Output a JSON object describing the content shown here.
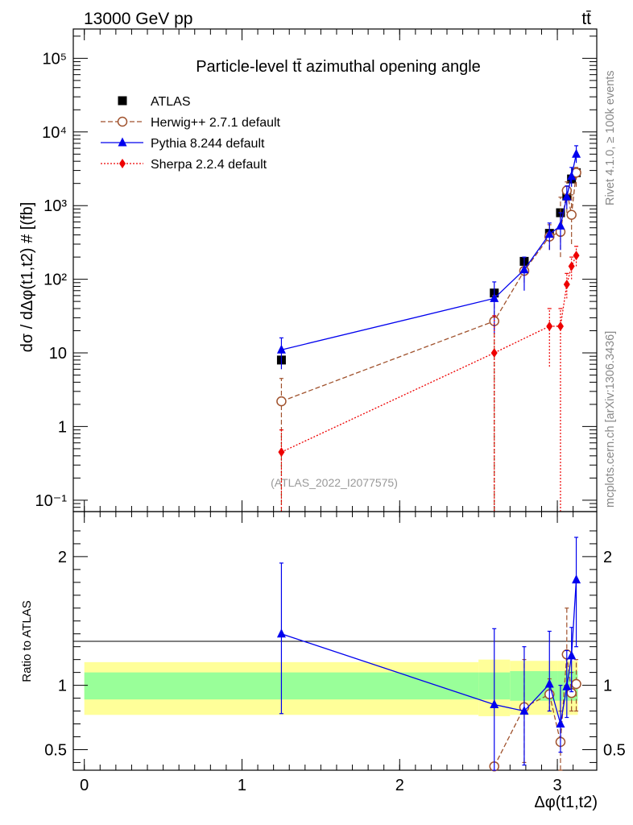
{
  "header": {
    "energy_label": "13000 GeV pp",
    "process_label": "tt̄"
  },
  "side_labels": {
    "rivet": "Rivet 4.1.0, ≥ 100k events",
    "mcplots": "mcplots.cern.ch [arXiv:1306.3436]"
  },
  "analysis_id": "(ATLAS_2022_I2077575)",
  "colors": {
    "atlas": "#000000",
    "herwig": "#a0522d",
    "pythia": "#0000ee",
    "sherpa": "#ee0000",
    "band_inner": "#99ff99",
    "band_outer": "#ffff99"
  },
  "chart_data": [
    {
      "type": "line",
      "panel": "main",
      "title": "Particle-level tt̄ azimuthal opening angle",
      "ylabel": "dσ / dΔφ(t1,t2) # [(fb]",
      "yscale": "log",
      "ylim": [
        0.07,
        250000
      ],
      "xlim": [
        -0.07,
        3.25
      ],
      "y_ticks": [
        {
          "v": 0.1,
          "label": "10⁻¹"
        },
        {
          "v": 1,
          "label": "1"
        },
        {
          "v": 10,
          "label": "10"
        },
        {
          "v": 100,
          "label": "10²"
        },
        {
          "v": 1000,
          "label": "10³"
        },
        {
          "v": 10000,
          "label": "10⁴"
        },
        {
          "v": 100000,
          "label": "10⁵"
        }
      ],
      "legend_position": "top-left",
      "series": [
        {
          "name": "ATLAS",
          "key": "atlas",
          "marker": "square",
          "line": "none",
          "x": [
            1.25,
            2.6,
            2.79,
            2.95,
            3.02,
            3.06,
            3.09,
            3.12
          ],
          "y": [
            8,
            65,
            175,
            420,
            800,
            1350,
            2300,
            2800
          ]
        },
        {
          "name": "Herwig++ 2.7.1 default",
          "key": "herwig",
          "marker": "circle",
          "line": "dashed",
          "x": [
            1.25,
            2.6,
            2.79,
            2.95,
            3.02,
            3.06,
            3.09,
            3.12
          ],
          "y": [
            2.2,
            27,
            130,
            380,
            440,
            1600,
            750,
            2800
          ],
          "err_low": [
            0,
            0,
            90,
            250,
            200,
            800,
            300,
            1800
          ],
          "err_high": [
            4.5,
            60,
            200,
            550,
            1300,
            2100,
            1400,
            3300
          ]
        },
        {
          "name": "Pythia 8.244 default",
          "key": "pythia",
          "marker": "triangle",
          "line": "solid",
          "x": [
            1.25,
            2.6,
            2.79,
            2.95,
            3.02,
            3.06,
            3.09,
            3.12
          ],
          "y": [
            11,
            55,
            135,
            410,
            530,
            1320,
            2500,
            5000
          ],
          "err_low": [
            6,
            18,
            70,
            250,
            250,
            900,
            1800,
            3800
          ],
          "err_high": [
            16,
            92,
            200,
            580,
            800,
            1850,
            3300,
            6500
          ]
        },
        {
          "name": "Sherpa 2.2.4 default",
          "key": "sherpa",
          "marker": "diamond",
          "line": "dotted",
          "x": [
            1.25,
            2.6,
            2.95,
            3.02,
            3.06,
            3.09,
            3.12
          ],
          "y": [
            0.45,
            10,
            23,
            23,
            85,
            150,
            210
          ],
          "err_low": [
            0,
            0,
            6.5,
            0,
            55,
            100,
            150
          ],
          "err_high": [
            0.9,
            32,
            40,
            40,
            120,
            200,
            280
          ]
        }
      ]
    },
    {
      "type": "line",
      "panel": "ratio",
      "ylabel": "Ratio to ATLAS",
      "xlabel": "Δφ(t1,t2)",
      "ylim": [
        0.34,
        2.35
      ],
      "xlim": [
        -0.07,
        3.25
      ],
      "y_ticks": [
        {
          "v": 0.5,
          "label": "0.5"
        },
        {
          "v": 1,
          "label": "1"
        },
        {
          "v": 2,
          "label": "2"
        }
      ],
      "x_ticks": [
        {
          "v": 0,
          "label": "0"
        },
        {
          "v": 1,
          "label": "1"
        },
        {
          "v": 2,
          "label": "2"
        },
        {
          "v": 3,
          "label": "3"
        }
      ],
      "bands": {
        "x_edges": [
          0,
          2.5,
          2.7,
          2.9,
          3.0,
          3.05,
          3.08,
          3.1,
          3.13
        ],
        "inner_low": [
          0.89,
          0.89,
          0.88,
          0.88,
          0.88,
          0.88,
          0.88,
          0.88
        ],
        "inner_high": [
          1.1,
          1.1,
          1.11,
          1.11,
          1.11,
          1.11,
          1.11,
          1.11
        ],
        "outer_low": [
          0.77,
          0.76,
          0.77,
          0.77,
          0.77,
          0.77,
          0.77,
          0.77
        ],
        "outer_high": [
          1.18,
          1.2,
          1.19,
          1.19,
          1.19,
          1.19,
          1.19,
          1.19
        ]
      },
      "series": [
        {
          "name": "Herwig++ 2.7.1 default",
          "key": "herwig",
          "marker": "circle",
          "line": "dashed",
          "x": [
            2.6,
            2.79,
            2.95,
            3.02,
            3.06,
            3.09,
            3.12
          ],
          "y": [
            0.37,
            0.83,
            0.93,
            0.56,
            1.24,
            0.94,
            1.01
          ],
          "err_low": [
            0.3,
            0.4,
            0.8,
            0.3,
            1.0,
            0.8,
            0.8
          ],
          "err_high": [
            0.4,
            1.2,
            1.05,
            0.8,
            1.6,
            1.1,
            1.2
          ]
        },
        {
          "name": "Pythia 8.244 default",
          "key": "pythia",
          "marker": "triangle",
          "line": "solid",
          "x": [
            1.25,
            2.6,
            2.79,
            2.95,
            3.02,
            3.06,
            3.09,
            3.12
          ],
          "y": [
            1.4,
            0.85,
            0.8,
            1.01,
            0.7,
            0.99,
            1.23,
            1.82
          ],
          "err_low": [
            0.78,
            0.3,
            0.38,
            0.8,
            0.48,
            0.75,
            0.95,
            1.3
          ],
          "err_high": [
            1.95,
            1.44,
            1.3,
            1.42,
            1.0,
            1.27,
            1.45,
            2.15
          ]
        }
      ]
    }
  ]
}
